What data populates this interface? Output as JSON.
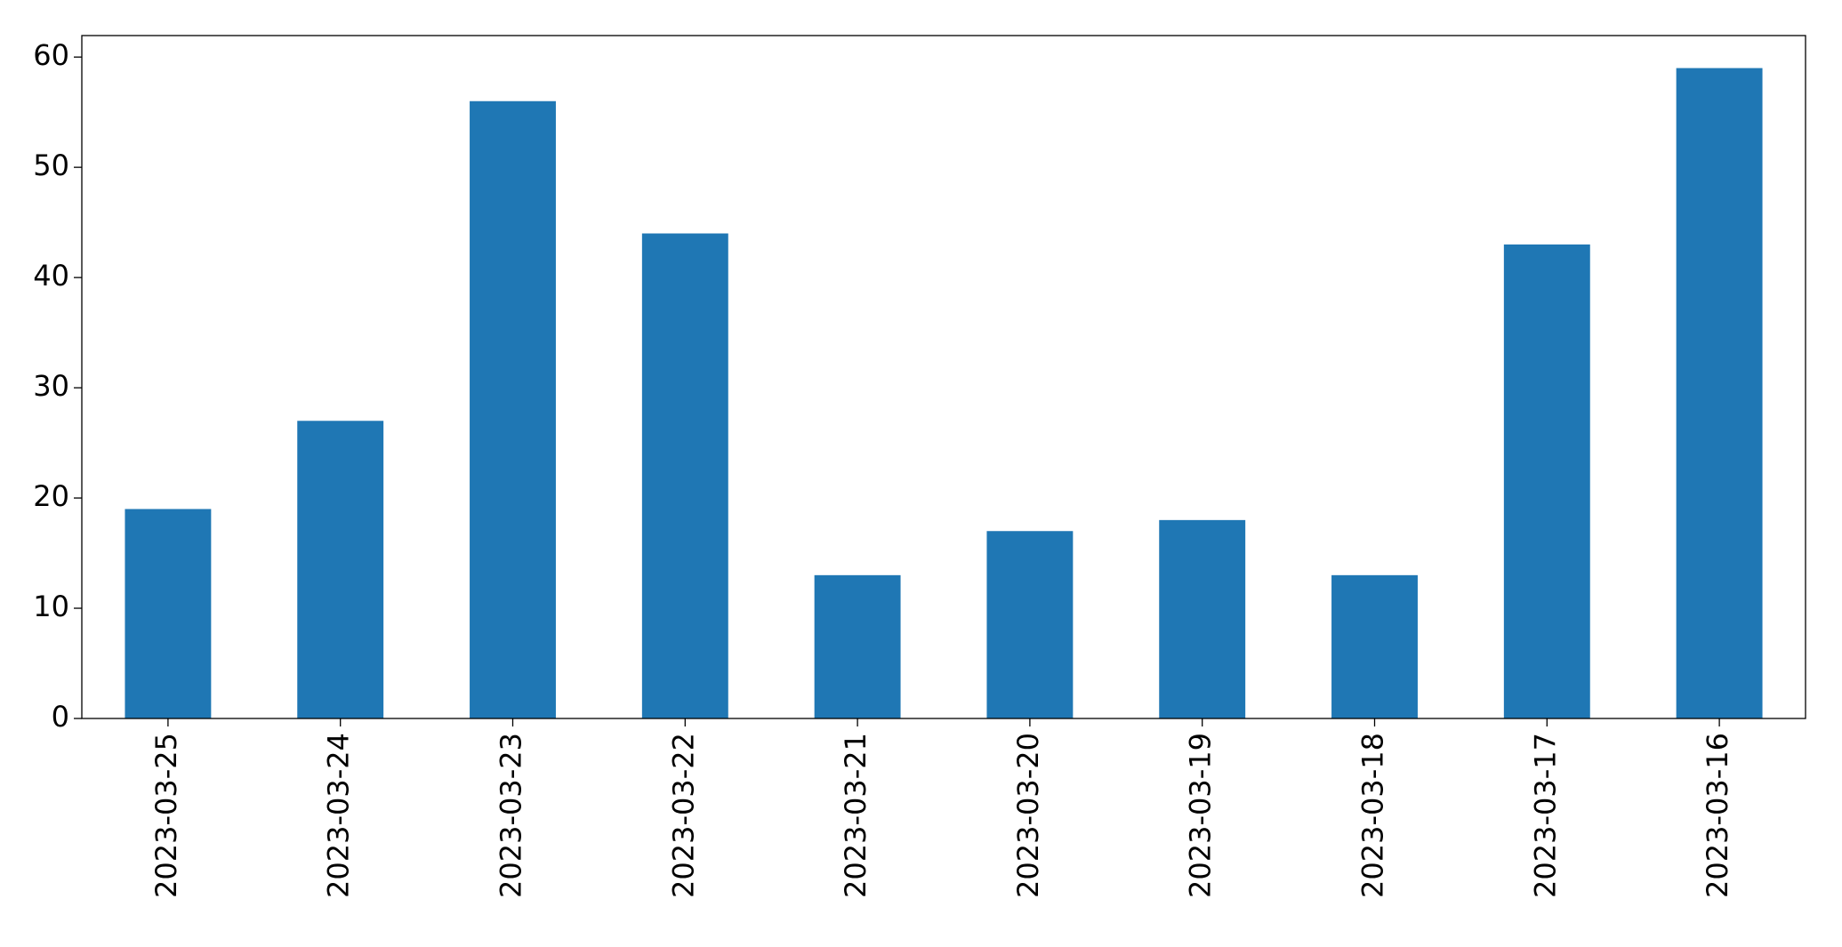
{
  "chart_data": {
    "type": "bar",
    "categories": [
      "2023-03-25",
      "2023-03-24",
      "2023-03-23",
      "2023-03-22",
      "2023-03-21",
      "2023-03-20",
      "2023-03-19",
      "2023-03-18",
      "2023-03-17",
      "2023-03-16"
    ],
    "values": [
      19,
      27,
      56,
      44,
      13,
      17,
      18,
      13,
      43,
      59
    ],
    "color": "#1f77b4",
    "ylim": [
      0,
      61.95
    ],
    "yticks": [
      0,
      10,
      20,
      30,
      40,
      50,
      60
    ],
    "grid": false
  }
}
